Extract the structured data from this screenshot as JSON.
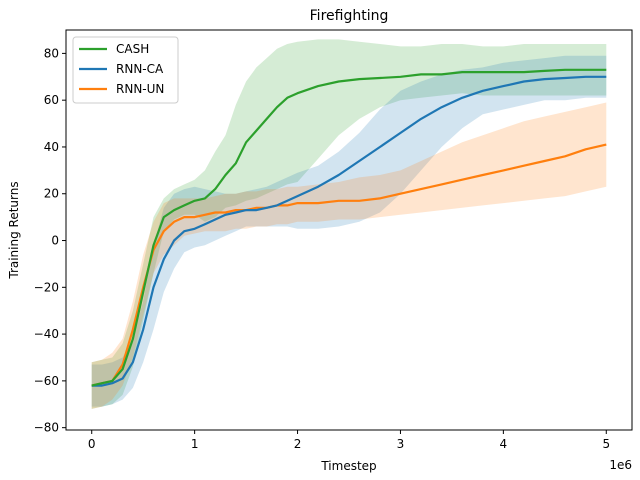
{
  "chart_data": {
    "type": "line",
    "title": "Firefighting",
    "xlabel": "Timestep",
    "ylabel": "Training Returns",
    "x_offset_label": "1e6",
    "xlim": [
      -0.25,
      5.25
    ],
    "ylim": [
      -81,
      90
    ],
    "xticks": [
      0,
      1,
      2,
      3,
      4,
      5
    ],
    "yticks": [
      -80,
      -60,
      -40,
      -20,
      0,
      20,
      40,
      60,
      80
    ],
    "xtick_labels": [
      "0",
      "1",
      "2",
      "3",
      "4",
      "5"
    ],
    "ytick_labels": [
      "−80",
      "−60",
      "−40",
      "−20",
      "0",
      "20",
      "40",
      "60",
      "80"
    ],
    "grid": false,
    "legend_position": "top-left",
    "x": [
      0,
      0.1,
      0.2,
      0.3,
      0.4,
      0.5,
      0.6,
      0.7,
      0.8,
      0.9,
      1.0,
      1.1,
      1.2,
      1.3,
      1.4,
      1.5,
      1.6,
      1.7,
      1.8,
      1.9,
      2.0,
      2.2,
      2.4,
      2.6,
      2.8,
      3.0,
      3.2,
      3.4,
      3.6,
      3.8,
      4.0,
      4.2,
      4.4,
      4.6,
      4.8,
      5.0
    ],
    "series": [
      {
        "name": "CASH",
        "color": "#2ca02c",
        "values": [
          -62,
          -61,
          -60,
          -55,
          -42,
          -22,
          -2,
          10,
          13,
          15,
          17,
          18,
          22,
          28,
          33,
          42,
          47,
          52,
          57,
          61,
          63,
          66,
          68,
          69,
          69.5,
          70,
          71,
          71,
          72,
          72,
          72,
          72,
          72.5,
          73,
          73,
          73
        ],
        "lower": [
          -72,
          -71,
          -70,
          -66,
          -54,
          -34,
          -14,
          4,
          9,
          11,
          11,
          8,
          10,
          14,
          15,
          17,
          18,
          20,
          22,
          24,
          25,
          35,
          45,
          52,
          57,
          60,
          61,
          62,
          63,
          62,
          62,
          62,
          62,
          62,
          62,
          62
        ],
        "upper": [
          -52,
          -51,
          -50,
          -44,
          -30,
          -10,
          10,
          18,
          22,
          24,
          26,
          30,
          38,
          45,
          58,
          68,
          74,
          78,
          82,
          84,
          85,
          86,
          86,
          85,
          84,
          83,
          83,
          84,
          84,
          83,
          83,
          84,
          84,
          84,
          84,
          84
        ]
      },
      {
        "name": "RNN-CA",
        "color": "#1f77b4",
        "values": [
          -62,
          -62,
          -61,
          -59,
          -52,
          -38,
          -20,
          -8,
          0,
          4,
          5,
          7,
          9,
          11,
          12,
          13,
          13,
          14,
          15,
          17,
          19,
          23,
          28,
          34,
          40,
          46,
          52,
          57,
          61,
          64,
          66,
          68,
          69,
          69.5,
          70,
          70
        ],
        "lower": [
          -71,
          -71,
          -70,
          -68,
          -63,
          -52,
          -38,
          -22,
          -12,
          -5,
          -3,
          -2,
          0,
          2,
          4,
          6,
          6,
          6,
          6,
          6,
          5,
          5,
          6,
          8,
          12,
          20,
          30,
          40,
          48,
          54,
          56,
          58,
          60,
          60,
          61,
          61
        ],
        "upper": [
          -53,
          -53,
          -52,
          -50,
          -42,
          -26,
          -2,
          14,
          20,
          22,
          23,
          22,
          21,
          20,
          20,
          21,
          22,
          23,
          25,
          27,
          29,
          32,
          38,
          46,
          56,
          64,
          68,
          71,
          73,
          74,
          76,
          77,
          78,
          79,
          79,
          79
        ]
      },
      {
        "name": "RNN-UN",
        "color": "#ff7f0e",
        "values": [
          -62,
          -61,
          -60,
          -53,
          -38,
          -20,
          -4,
          4,
          8,
          10,
          10,
          11,
          12,
          12,
          13,
          13,
          14,
          14,
          15,
          15,
          16,
          16,
          17,
          17,
          18,
          20,
          22,
          24,
          26,
          28,
          30,
          32,
          34,
          36,
          39,
          41
        ],
        "lower": [
          -72,
          -71,
          -68,
          -62,
          -50,
          -32,
          -14,
          -6,
          -2,
          2,
          3,
          4,
          4,
          4,
          5,
          5,
          6,
          6,
          7,
          7,
          8,
          8,
          9,
          9,
          10,
          11,
          12,
          13,
          14,
          15,
          16,
          17,
          18,
          19,
          21,
          23
        ],
        "upper": [
          -52,
          -51,
          -48,
          -42,
          -26,
          -6,
          8,
          16,
          18,
          18,
          18,
          18,
          19,
          20,
          20,
          21,
          21,
          22,
          22,
          23,
          23,
          24,
          25,
          27,
          28,
          30,
          34,
          38,
          42,
          45,
          48,
          51,
          53,
          55,
          57,
          59
        ]
      }
    ]
  }
}
